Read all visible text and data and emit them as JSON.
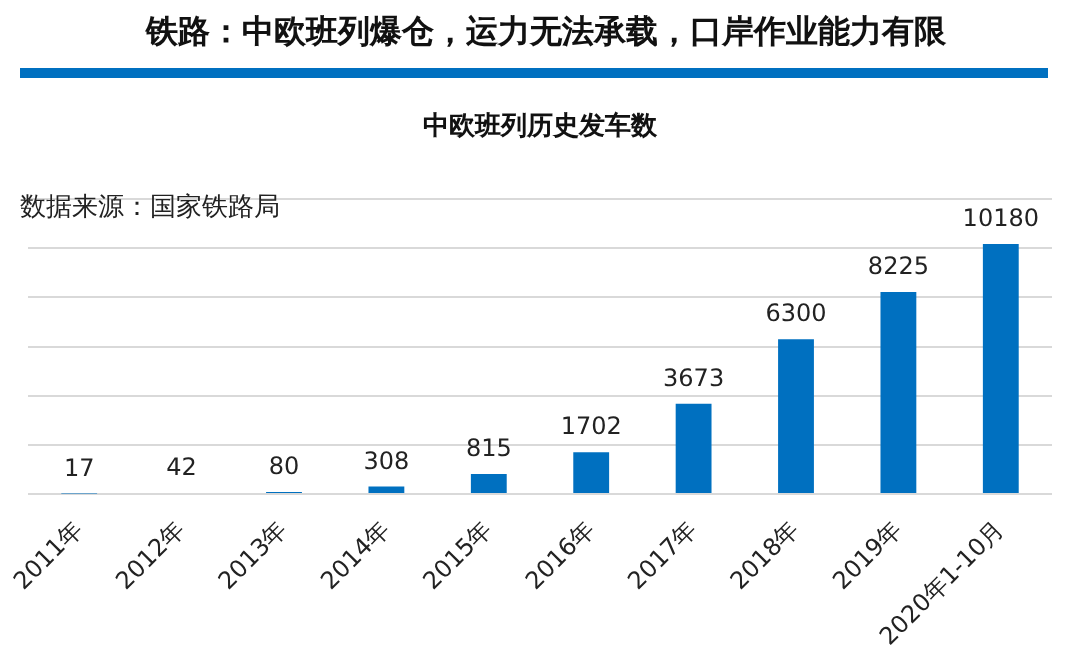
{
  "chart_data": {
    "type": "bar",
    "title": "铁路：中欧班列爆仓，运力无法承载，口岸作业能力有限",
    "subtitle": "中欧班列历史发车数",
    "annotations": [
      "数据来源：国家铁路局"
    ],
    "categories": [
      "2011年",
      "2012年",
      "2013年",
      "2014年",
      "2015年",
      "2016年",
      "2017年",
      "2018年",
      "2019年",
      "2020年1-10月"
    ],
    "values": [
      17,
      42,
      80,
      308,
      815,
      1702,
      3673,
      6300,
      8225,
      10180
    ],
    "color": "#0070c0",
    "ylim": [
      0,
      12000
    ],
    "yticks": [
      {
        "value": 0,
        "label": null
      },
      {
        "value": 2000,
        "label": null
      },
      {
        "value": 4000,
        "label": null
      },
      {
        "value": 6000,
        "label": null
      },
      {
        "value": 8000,
        "label": null
      },
      {
        "value": 10000,
        "label": null
      },
      {
        "value": 12000,
        "label": null
      }
    ],
    "grid": "y",
    "data_labels": true,
    "legend": false
  }
}
